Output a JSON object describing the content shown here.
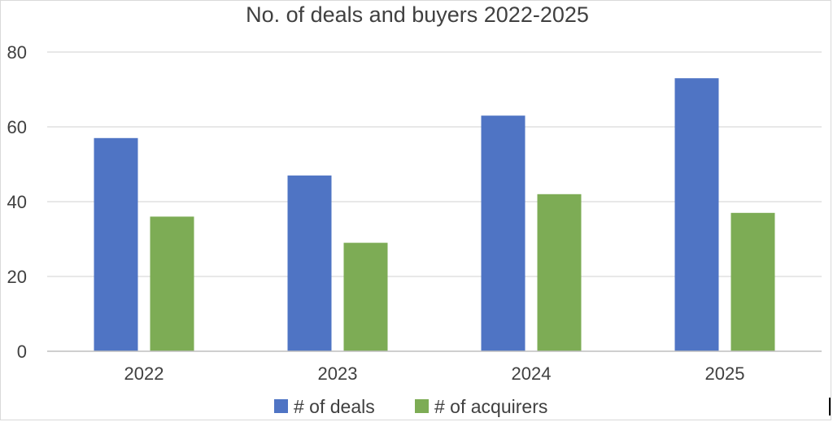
{
  "chart_data": {
    "type": "bar",
    "title": "No. of deals and buyers 2022-2025",
    "categories": [
      "2022",
      "2023",
      "2024",
      "2025"
    ],
    "series": [
      {
        "name": "# of deals",
        "values": [
          57,
          47,
          63,
          73
        ],
        "color": "#4f74c4"
      },
      {
        "name": "# of acquirers",
        "values": [
          36,
          29,
          42,
          37
        ],
        "color": "#7dac55"
      }
    ],
    "yticks": [
      0,
      20,
      40,
      60,
      80
    ],
    "ylim": [
      0,
      80
    ],
    "grid": true,
    "legend_position": "bottom",
    "gridline_color": "#d9d9d9",
    "axis_color": "#bfbfbf"
  }
}
